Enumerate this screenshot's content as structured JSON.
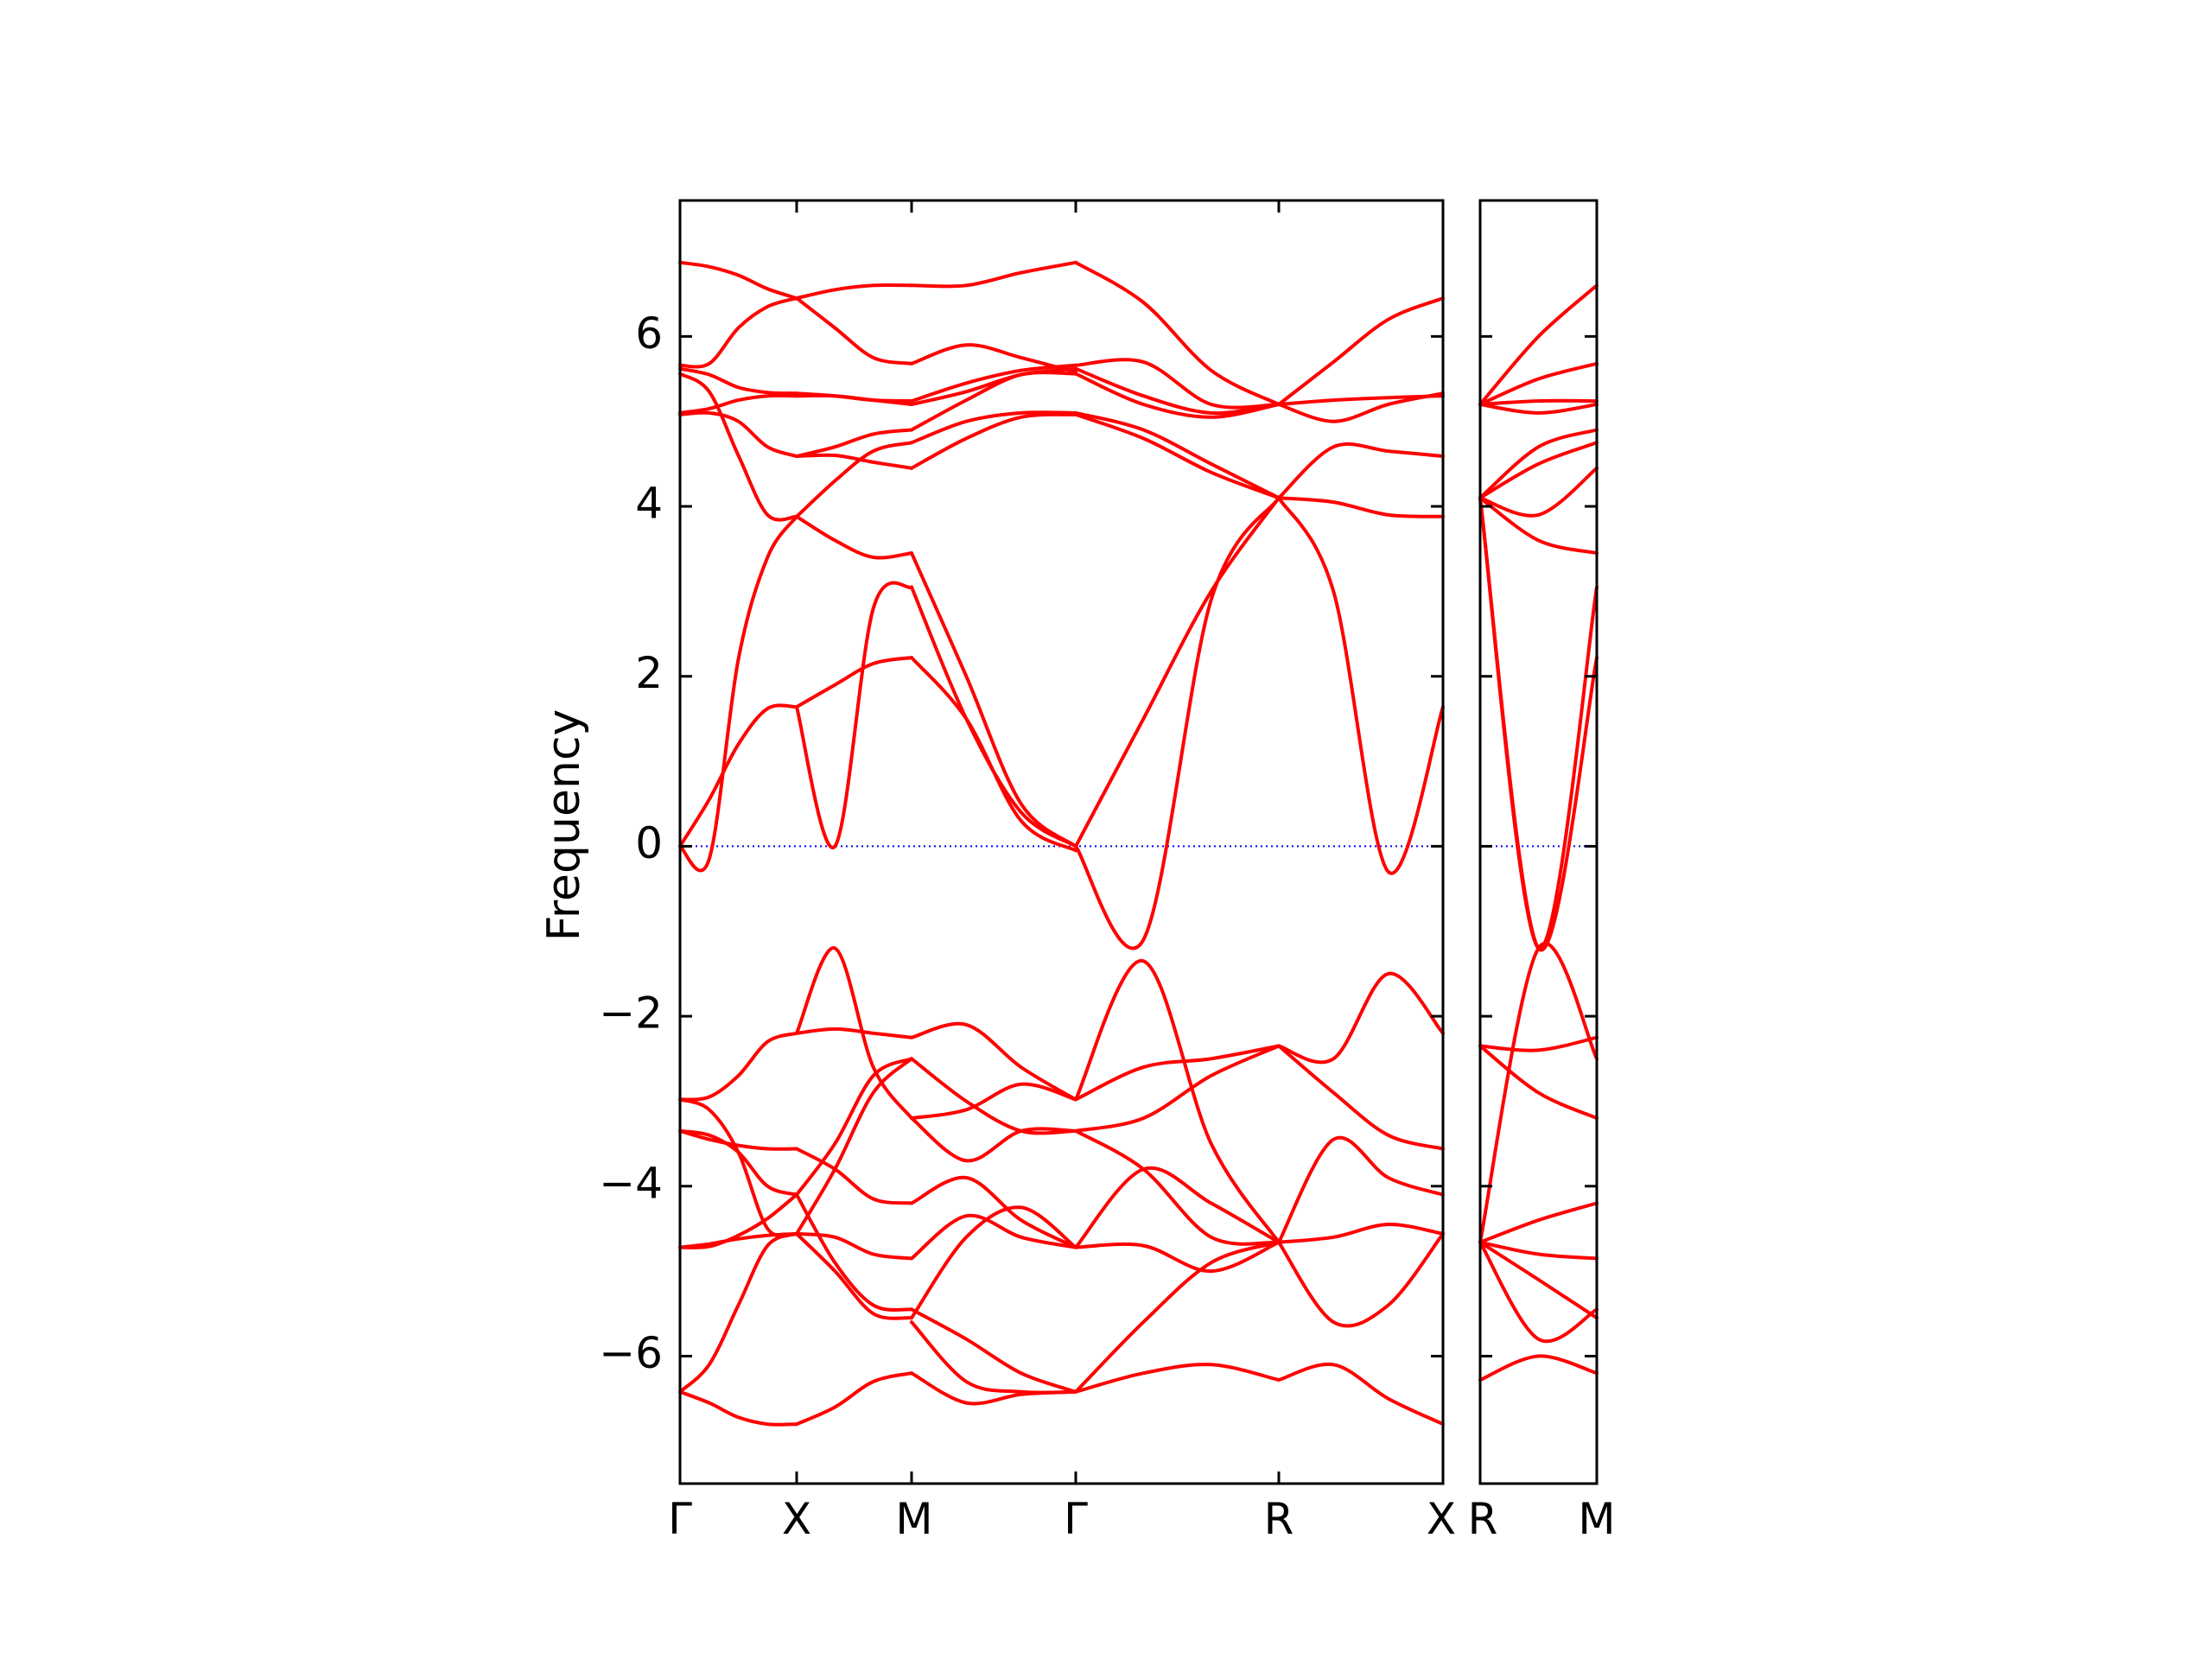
{
  "chart_data": {
    "type": "line",
    "ylabel": "Frequency",
    "ylim": [
      -7.5,
      7.6
    ],
    "yticks": [
      -6,
      -4,
      -2,
      0,
      2,
      4,
      6
    ],
    "ytick_labels": [
      "−6",
      "−4",
      "−2",
      "0",
      "2",
      "4",
      "6"
    ],
    "line_color": "#ff0000",
    "zero_line_color": "#0000ff",
    "grid": false,
    "panels": [
      {
        "path_labels": [
          "Γ",
          "X",
          "M",
          "Γ",
          "R",
          "X"
        ],
        "segments": [
          {
            "from": "Γ",
            "to": "X",
            "bands": [
              [
                6.87,
                6.82,
                6.72,
                6.56,
                6.45
              ],
              [
                5.66,
                5.68,
                6.1,
                6.35,
                6.45
              ],
              [
                5.62,
                5.55,
                5.4,
                5.34,
                5.33
              ],
              [
                5.56,
                5.35,
                4.6,
                3.9,
                3.88
              ],
              [
                5.1,
                5.15,
                5.25,
                5.3,
                5.3
              ],
              [
                5.08,
                5.1,
                5.0,
                4.7,
                4.59
              ],
              [
                0.0,
                -0.15,
                2.2,
                3.4,
                3.88
              ],
              [
                0.0,
                0.55,
                1.2,
                1.62,
                1.64
              ],
              [
                -2.98,
                -2.95,
                -2.7,
                -2.3,
                -2.2
              ],
              [
                -2.98,
                -3.1,
                -3.6,
                -4.5,
                -4.56
              ],
              [
                -3.35,
                -3.4,
                -3.6,
                -4.0,
                -4.1
              ],
              [
                -3.35,
                -3.45,
                -3.52,
                -3.56,
                -3.56
              ],
              [
                -4.72,
                -4.68,
                -4.62,
                -4.58,
                -4.56
              ],
              [
                -4.72,
                -4.71,
                -4.58,
                -4.38,
                -4.1
              ],
              [
                -6.42,
                -6.1,
                -5.4,
                -4.7,
                -4.56
              ],
              [
                -6.42,
                -6.55,
                -6.72,
                -6.8,
                -6.8
              ]
            ]
          },
          {
            "from": "X",
            "to": "M",
            "bands": [
              [
                6.45,
                6.55,
                6.6,
                6.6
              ],
              [
                6.45,
                6.1,
                5.75,
                5.68
              ],
              [
                5.33,
                5.3,
                5.25,
                5.24
              ],
              [
                5.3,
                5.3,
                5.25,
                5.2
              ],
              [
                4.59,
                4.7,
                4.85,
                4.9
              ],
              [
                3.88,
                3.6,
                3.4,
                3.45
              ],
              [
                4.59,
                4.6,
                4.52,
                4.45
              ],
              [
                3.88,
                4.3,
                4.65,
                4.75
              ],
              [
                1.64,
                1.9,
                2.15,
                2.22
              ],
              [
                1.64,
                0.0,
                2.8,
                3.05
              ],
              [
                -2.2,
                -2.15,
                -2.2,
                -2.25
              ],
              [
                -2.2,
                -1.2,
                -2.6,
                -3.2
              ],
              [
                -4.56,
                -3.8,
                -2.9,
                -2.5
              ],
              [
                -3.56,
                -3.8,
                -4.15,
                -4.2
              ],
              [
                -4.56,
                -4.6,
                -4.8,
                -4.85
              ],
              [
                -4.1,
                -3.5,
                -2.7,
                -2.5
              ],
              [
                -4.56,
                -5.0,
                -5.5,
                -5.55
              ],
              [
                -4.1,
                -4.9,
                -5.4,
                -5.45
              ],
              [
                -6.8,
                -6.6,
                -6.3,
                -6.2
              ]
            ]
          },
          {
            "from": "M",
            "to": "Γ",
            "bands": [
              [
                6.6,
                6.6,
                6.75,
                6.87
              ],
              [
                5.68,
                5.9,
                5.75,
                5.58
              ],
              [
                5.24,
                5.45,
                5.6,
                5.66
              ],
              [
                5.2,
                5.35,
                5.55,
                5.62
              ],
              [
                4.9,
                5.25,
                5.55,
                5.56
              ],
              [
                4.75,
                5.0,
                5.1,
                5.1
              ],
              [
                4.45,
                4.8,
                5.05,
                5.08
              ],
              [
                3.45,
                2.0,
                0.5,
                0.0
              ],
              [
                3.05,
                1.5,
                0.4,
                0.0
              ],
              [
                2.22,
                1.5,
                0.3,
                -0.05
              ],
              [
                -2.25,
                -2.1,
                -2.6,
                -2.98
              ],
              [
                -3.2,
                -3.1,
                -2.8,
                -2.98
              ],
              [
                -2.5,
                -3.0,
                -3.35,
                -3.35
              ],
              [
                -3.2,
                -3.7,
                -3.35,
                -3.35
              ],
              [
                -4.2,
                -3.9,
                -4.4,
                -4.72
              ],
              [
                -4.85,
                -4.35,
                -4.6,
                -4.72
              ],
              [
                -5.55,
                -4.6,
                -4.25,
                -4.72
              ],
              [
                -5.45,
                -5.8,
                -6.2,
                -6.42
              ],
              [
                -5.6,
                -6.3,
                -6.42,
                -6.42
              ],
              [
                -6.2,
                -6.55,
                -6.45,
                -6.42
              ]
            ]
          },
          {
            "from": "Γ",
            "to": "R",
            "bands": [
              [
                6.87,
                6.4,
                5.6,
                5.2
              ],
              [
                5.66,
                5.7,
                5.2,
                5.2
              ],
              [
                5.62,
                5.3,
                5.1,
                5.2
              ],
              [
                5.56,
                5.2,
                5.05,
                5.2
              ],
              [
                5.1,
                4.9,
                4.5,
                4.1
              ],
              [
                5.08,
                4.8,
                4.4,
                4.1
              ],
              [
                0.0,
                1.5,
                3.0,
                4.1
              ],
              [
                0.0,
                -1.1,
                2.9,
                4.1
              ],
              [
                -2.98,
                -1.35,
                -3.5,
                -4.66
              ],
              [
                -2.98,
                -2.6,
                -2.5,
                -2.35
              ],
              [
                -3.35,
                -3.2,
                -2.7,
                -2.35
              ],
              [
                -3.35,
                -3.8,
                -4.6,
                -4.66
              ],
              [
                -4.72,
                -3.8,
                -4.2,
                -4.66
              ],
              [
                -4.72,
                -4.7,
                -5.0,
                -4.66
              ],
              [
                -6.42,
                -5.6,
                -4.9,
                -4.66
              ],
              [
                -6.42,
                -6.2,
                -6.1,
                -6.28
              ]
            ]
          },
          {
            "from": "R",
            "to": "X",
            "bands": [
              [
                5.2,
                5.7,
                6.2,
                6.45
              ],
              [
                5.2,
                5.0,
                5.2,
                5.33
              ],
              [
                5.2,
                5.25,
                5.28,
                5.3
              ],
              [
                4.1,
                4.7,
                4.65,
                4.59
              ],
              [
                4.1,
                4.05,
                3.9,
                3.88
              ],
              [
                4.1,
                3.0,
                -0.3,
                1.64
              ],
              [
                -2.35,
                -2.5,
                -1.5,
                -2.2
              ],
              [
                -2.35,
                -2.9,
                -3.4,
                -3.56
              ],
              [
                -4.66,
                -3.45,
                -3.9,
                -4.1
              ],
              [
                -4.66,
                -4.6,
                -4.45,
                -4.56
              ],
              [
                -4.66,
                -5.6,
                -5.4,
                -4.56
              ],
              [
                -6.28,
                -6.1,
                -6.5,
                -6.8
              ]
            ]
          }
        ]
      },
      {
        "path_labels": [
          "R",
          "M"
        ],
        "segments": [
          {
            "from": "R",
            "to": "M",
            "bands": [
              [
                5.2,
                6.0,
                6.6
              ],
              [
                5.2,
                5.5,
                5.68
              ],
              [
                5.2,
                5.24,
                5.24
              ],
              [
                5.2,
                5.1,
                5.2
              ],
              [
                4.1,
                4.7,
                4.9
              ],
              [
                4.1,
                4.5,
                4.75
              ],
              [
                4.1,
                3.9,
                4.45
              ],
              [
                4.1,
                3.6,
                3.45
              ],
              [
                4.1,
                -1.2,
                3.05
              ],
              [
                4.1,
                -1.2,
                2.22
              ],
              [
                -2.35,
                -2.4,
                -2.25
              ],
              [
                -2.35,
                -2.9,
                -3.2
              ],
              [
                -4.66,
                -1.2,
                -2.5
              ],
              [
                -4.66,
                -4.4,
                -4.2
              ],
              [
                -4.66,
                -4.8,
                -4.85
              ],
              [
                -4.66,
                -5.1,
                -5.55
              ],
              [
                -4.66,
                -5.8,
                -5.45
              ],
              [
                -6.28,
                -6.0,
                -6.2
              ]
            ]
          }
        ]
      }
    ]
  }
}
